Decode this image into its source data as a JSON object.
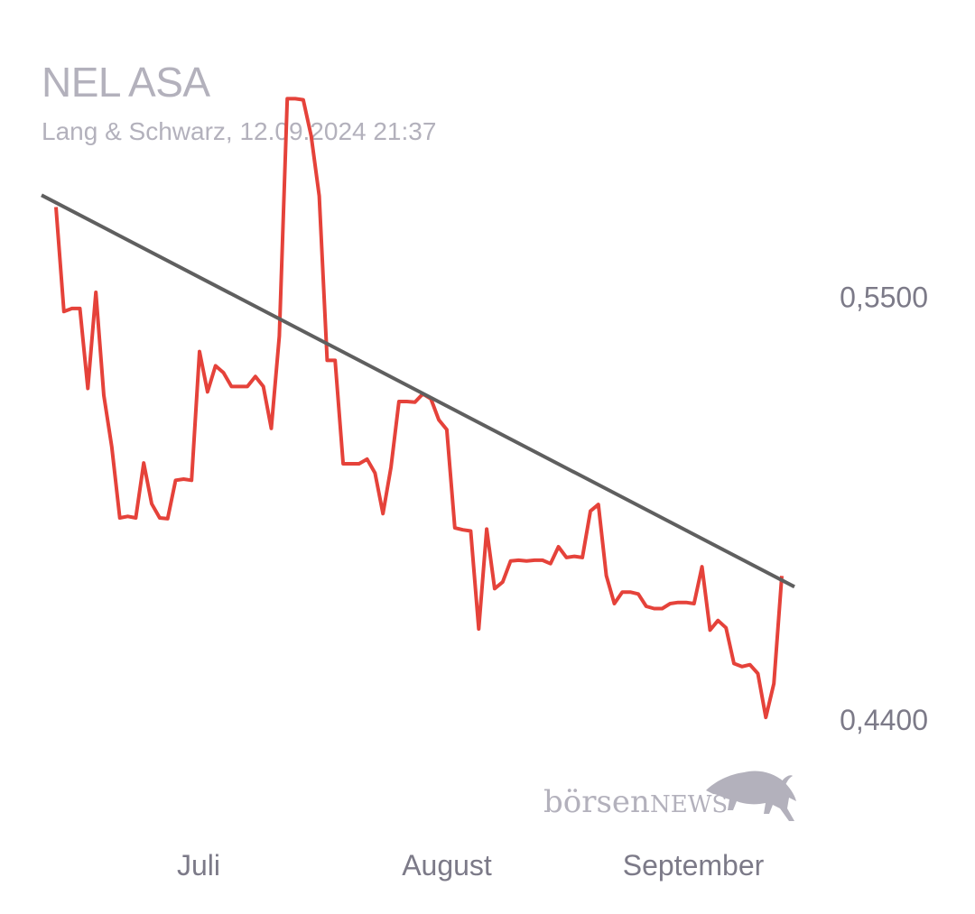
{
  "header": {
    "title": "NEL ASA",
    "subtitle": "Lang & Schwarz, 12.09.2024 21:37"
  },
  "logo": {
    "text_main": "börsen",
    "text_accent": "NEWS",
    "icon": "bull-icon"
  },
  "colors": {
    "price_line": "#e5423a",
    "trend_line": "#5f5f5f",
    "axis_text": "#7c7a88",
    "title_text": "#b3b1bc",
    "logo": "#b3b1bc"
  },
  "chart_data": {
    "type": "line",
    "title": "NEL ASA",
    "subtitle": "Lang & Schwarz, 12.09.2024 21:37",
    "x_tick_labels": [
      "Juli",
      "August",
      "September"
    ],
    "y_tick_labels": [
      "0,5500",
      "0,4400"
    ],
    "y_ticks": [
      0.55,
      0.44
    ],
    "ylim": [
      0.4278,
      0.6039
    ],
    "grid": false,
    "series": [
      {
        "values": [
          0.5735,
          0.5463,
          0.5471,
          0.5471,
          0.5263,
          0.5513,
          0.5245,
          0.5111,
          0.4926,
          0.493,
          0.4926,
          0.5069,
          0.4963,
          0.4926,
          0.4924,
          0.5024,
          0.5027,
          0.5024,
          0.5359,
          0.5254,
          0.5322,
          0.5304,
          0.5268,
          0.5268,
          0.5268,
          0.5294,
          0.5268,
          0.5159,
          0.5399,
          0.6017,
          0.6017,
          0.6014,
          0.592,
          0.5764,
          0.5336,
          0.5336,
          0.5067,
          0.5067,
          0.5067,
          0.5079,
          0.5043,
          0.4937,
          0.5058,
          0.5229,
          0.5229,
          0.5227,
          0.5249,
          0.5236,
          0.5181,
          0.5156,
          0.49,
          0.4895,
          0.4892,
          0.4637,
          0.4897,
          0.4742,
          0.4759,
          0.4814,
          0.4816,
          0.4814,
          0.4816,
          0.4816,
          0.4807,
          0.4851,
          0.4823,
          0.4826,
          0.4823,
          0.4944,
          0.4961,
          0.4776,
          0.4703,
          0.4733,
          0.4733,
          0.4728,
          0.4696,
          0.469,
          0.469,
          0.4703,
          0.4706,
          0.4706,
          0.4703,
          0.4799,
          0.4634,
          0.4659,
          0.464,
          0.4547,
          0.4539,
          0.4544,
          0.4521,
          0.4407,
          0.4495,
          0.4775
        ]
      },
      {
        "values": [
          0.5766,
          0.4747
        ]
      }
    ]
  }
}
